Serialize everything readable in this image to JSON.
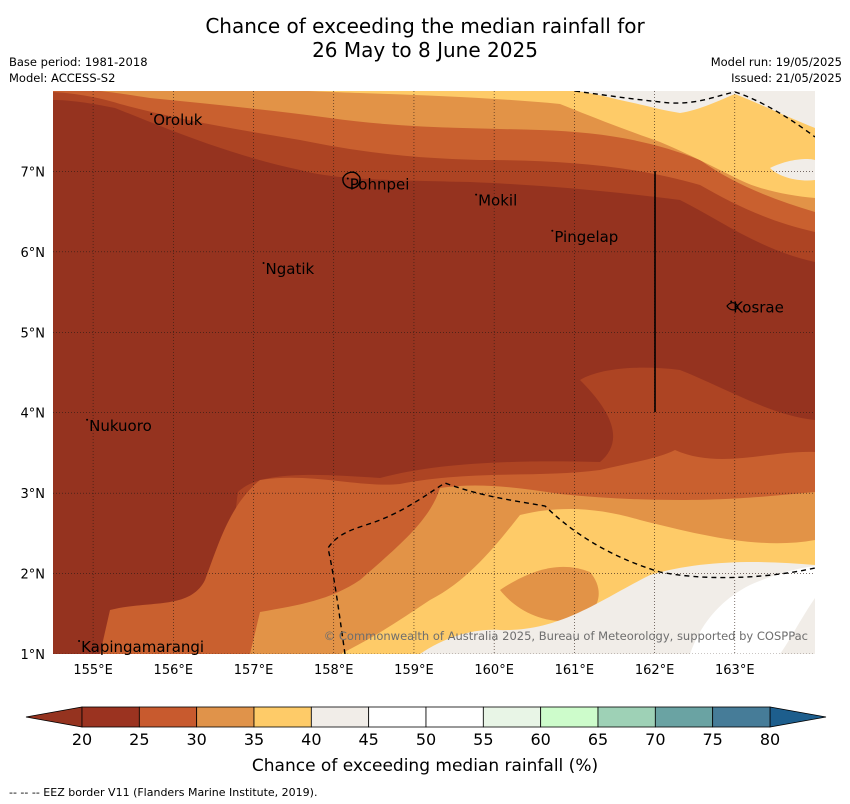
{
  "header": {
    "title_line1": "Chance of exceeding the median rainfall for",
    "title_line2": "26 May to 8 June 2025",
    "base_period": "Base period: 1981-2018",
    "model": "Model: ACCESS-S2",
    "model_run": "Model run: 19/05/2025",
    "issued": "Issued: 21/05/2025"
  },
  "map": {
    "lon_range": [
      154.5,
      164.0
    ],
    "lat_range": [
      1.0,
      8.0
    ],
    "lon_ticks": [
      "155°E",
      "156°E",
      "157°E",
      "158°E",
      "159°E",
      "160°E",
      "161°E",
      "162°E",
      "163°E"
    ],
    "lat_ticks": [
      "1°N",
      "2°N",
      "3°N",
      "4°N",
      "5°N",
      "6°N",
      "7°N"
    ],
    "places": [
      {
        "name": "Oroluk",
        "lon": 155.75,
        "lat": 7.65
      },
      {
        "name": "Pohnpei",
        "lon": 158.2,
        "lat": 6.85
      },
      {
        "name": "Mokil",
        "lon": 159.8,
        "lat": 6.65
      },
      {
        "name": "Pingelap",
        "lon": 160.75,
        "lat": 6.2
      },
      {
        "name": "Ngatik",
        "lon": 157.15,
        "lat": 5.8
      },
      {
        "name": "Kosrae",
        "lon": 162.98,
        "lat": 5.32
      },
      {
        "name": "Nukuoro",
        "lon": 154.95,
        "lat": 3.85
      },
      {
        "name": "Kapingamarangi",
        "lon": 154.85,
        "lat": 1.1
      }
    ],
    "copyright": "© Commonwealth of Australia 2025, Bureau of Meteorology, supported by COSPPac"
  },
  "colorbar": {
    "ticks": [
      "20",
      "25",
      "30",
      "35",
      "40",
      "45",
      "50",
      "55",
      "60",
      "65",
      "70",
      "75",
      "80"
    ],
    "colors": [
      "#9b3320",
      "#c85a2e",
      "#e0934a",
      "#fecb68",
      "#f1ede8",
      "#ffffff",
      "#ffffff",
      "#e8f5e6",
      "#cdfccb",
      "#9ed1b6",
      "#6aa3a3",
      "#467c98"
    ],
    "under_color": "#95331f",
    "over_color": "#1d5e8d",
    "label": "Chance of exceeding median rainfall (%)"
  },
  "footer": {
    "eez_note": "--  --  -- EEZ border V11 (Flanders Marine Institute, 2019)."
  },
  "colors": {
    "band_lt20": "#95331f",
    "band_20_25": "#ad4423",
    "band_25_30": "#c9602f",
    "band_30_35": "#e29347",
    "band_35_40": "#fecb68",
    "band_40_45": "#f1ede8",
    "band_45_50": "#ffffff"
  }
}
